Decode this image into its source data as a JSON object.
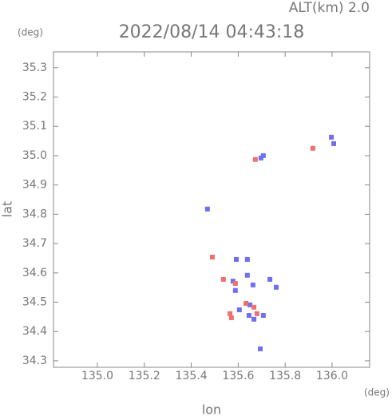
{
  "chart_data": {
    "type": "scatter",
    "title": "2022/08/14 04:43:18",
    "subtitle": "ALT(km) 2.0",
    "x_unit": "(deg)",
    "y_unit": "(deg)",
    "x_label": "lon",
    "y_label": "lat",
    "xlim": [
      134.813,
      136.16
    ],
    "ylim": [
      34.278,
      35.354
    ],
    "xticks": [
      {
        "value": 135.0,
        "label": "135.0"
      },
      135.2,
      135.4,
      135.6,
      135.8,
      {
        "value": 136.0,
        "label": "136.0"
      }
    ],
    "yticks": [
      34.3,
      34.4,
      34.5,
      34.6,
      34.7,
      34.8,
      34.9,
      {
        "value": 35.0,
        "label": "35.0"
      },
      35.1,
      35.2,
      35.3
    ],
    "series": [
      {
        "color": "#6f6ff2",
        "x": [
          135.697,
          135.707,
          135.997,
          136.007,
          135.469,
          135.592,
          135.578,
          135.588,
          135.639,
          135.663,
          135.605,
          135.646,
          135.667,
          135.707,
          135.694,
          135.762,
          135.735,
          135.639,
          135.65
        ],
        "values": [
          34.992,
          35.0,
          35.063,
          35.041,
          34.818,
          34.646,
          34.572,
          34.54,
          34.592,
          34.559,
          34.474,
          34.455,
          34.442,
          34.455,
          34.341,
          34.551,
          34.578,
          34.646,
          34.491
        ]
      },
      {
        "color": "#f07070",
        "x": [
          135.49,
          135.571,
          135.565,
          135.667,
          135.68,
          135.537,
          135.588,
          135.918,
          135.673,
          135.633
        ],
        "values": [
          34.654,
          34.447,
          34.461,
          34.483,
          34.461,
          34.578,
          34.564,
          35.025,
          34.987,
          34.496
        ]
      }
    ]
  }
}
